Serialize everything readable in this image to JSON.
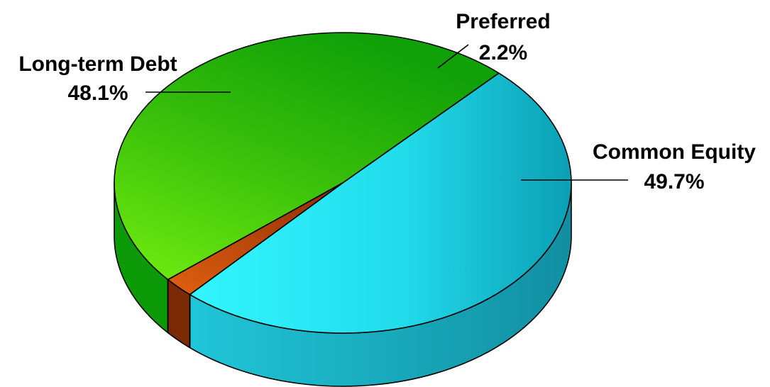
{
  "chart_data": {
    "type": "pie",
    "style": "3d",
    "slices": [
      {
        "label": "Common Equity",
        "value": 49.7,
        "value_label": "49.7%",
        "color": "#1fd6e8",
        "side_color": "#1aa9bd"
      },
      {
        "label": "Long-term Debt",
        "value": 48.1,
        "value_label": "48.1%",
        "color": "#3ec40a",
        "side_color": "#0c9a08"
      },
      {
        "label": "Preferred",
        "value": 2.2,
        "value_label": "2.2%",
        "color": "#c24a10",
        "side_color": "#7a2a04"
      }
    ],
    "legend": "none"
  }
}
